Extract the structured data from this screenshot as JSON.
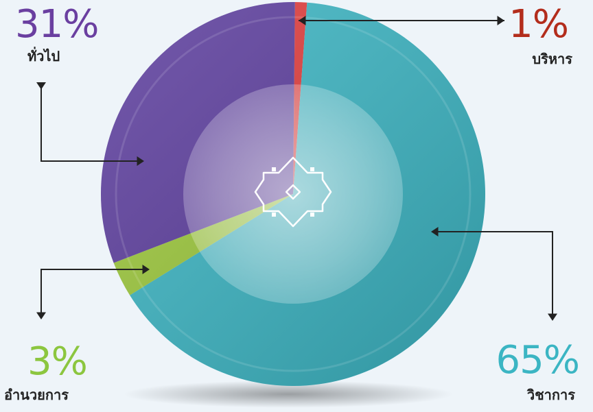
{
  "chart_data": {
    "type": "pie",
    "title": "",
    "slices": [
      {
        "label": "ทั่วไป",
        "percent_label": "31%",
        "value": 31,
        "color": "#5a3b9c"
      },
      {
        "label": "บริหาร",
        "percent_label": "1%",
        "value": 1,
        "color": "#e03a3a"
      },
      {
        "label": "วิชาการ",
        "percent_label": "65%",
        "value": 65,
        "color": "#3bb5c3"
      },
      {
        "label": "อำนวยการ",
        "percent_label": "3%",
        "value": 3,
        "color": "#9cc83a"
      }
    ],
    "label_colors": {
      "ทั่วไป": "#6a3fa0",
      "บริหาร": "#b32d1c",
      "วิชาการ": "#3bb5c3",
      "อำนวยการ": "#8cc63f"
    }
  },
  "center_icon": "ornament-icon"
}
